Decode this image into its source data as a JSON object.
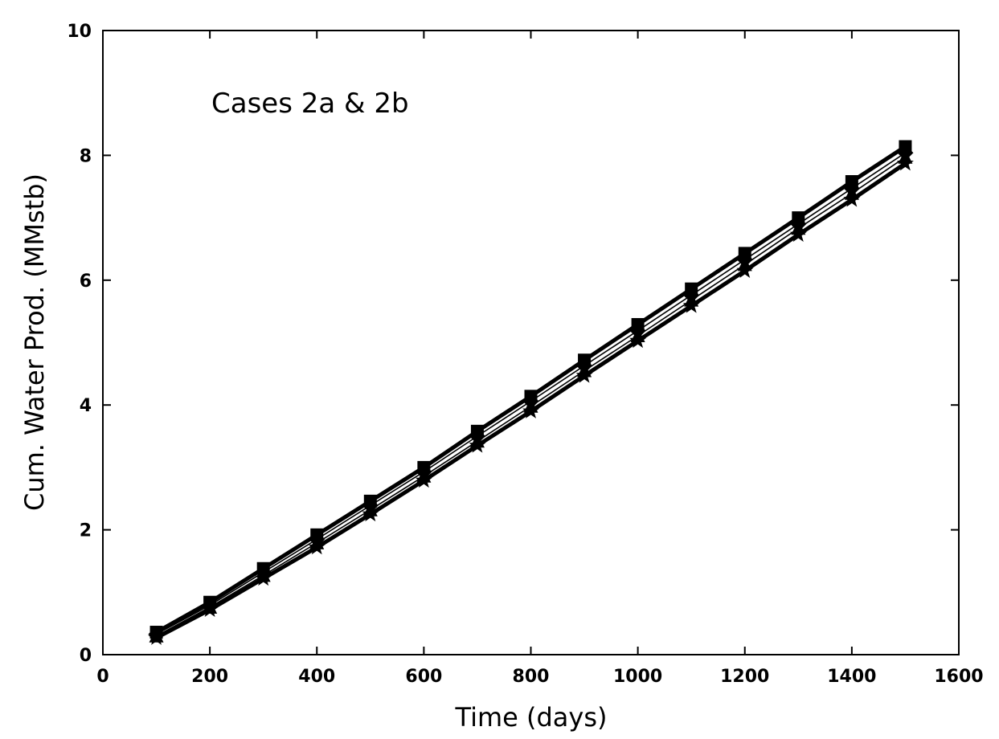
{
  "chart_data": {
    "type": "line",
    "title": "",
    "annotation": "Cases 2a & 2b",
    "xlabel": "Time (days)",
    "ylabel": "Cum. Water Prod. (MMstb)",
    "xlim": [
      0,
      1600
    ],
    "ylim": [
      0,
      10
    ],
    "xticks": [
      0,
      200,
      400,
      600,
      800,
      1000,
      1200,
      1400,
      1600
    ],
    "yticks": [
      0,
      2,
      4,
      6,
      8,
      10
    ],
    "xtick_labels": [
      "0",
      "200",
      "400",
      "600",
      "800",
      "1000",
      "1200",
      "1400",
      "1600"
    ],
    "ytick_labels": [
      "0",
      "2",
      "4",
      "6",
      "8",
      "10"
    ],
    "grid": false,
    "x": [
      100,
      200,
      300,
      400,
      500,
      600,
      700,
      800,
      900,
      1000,
      1100,
      1200,
      1300,
      1400,
      1500
    ],
    "series": [
      {
        "values": [
          0.36,
          0.84,
          1.38,
          1.92,
          2.46,
          3.0,
          3.58,
          4.14,
          4.72,
          5.29,
          5.86,
          6.43,
          7.0,
          7.58,
          8.14
        ],
        "color": "#000000",
        "line_weight": "heavy",
        "marker": "square"
      },
      {
        "values": [
          0.33,
          0.79,
          1.32,
          1.85,
          2.39,
          2.93,
          3.5,
          4.06,
          4.63,
          5.19,
          5.76,
          6.33,
          6.9,
          7.47,
          8.04
        ],
        "color": "#000000",
        "line_weight": "thin",
        "marker": "diamond"
      },
      {
        "values": [
          0.3,
          0.76,
          1.27,
          1.79,
          2.32,
          2.86,
          3.42,
          3.98,
          4.55,
          5.11,
          5.68,
          6.25,
          6.83,
          7.39,
          7.97
        ],
        "color": "#000000",
        "line_weight": "thin",
        "marker": "triangle"
      },
      {
        "values": [
          0.27,
          0.72,
          1.22,
          1.72,
          2.25,
          2.79,
          3.35,
          3.9,
          4.47,
          5.03,
          5.59,
          6.15,
          6.73,
          7.29,
          7.87
        ],
        "color": "#000000",
        "line_weight": "heavy",
        "marker": "star"
      }
    ]
  }
}
